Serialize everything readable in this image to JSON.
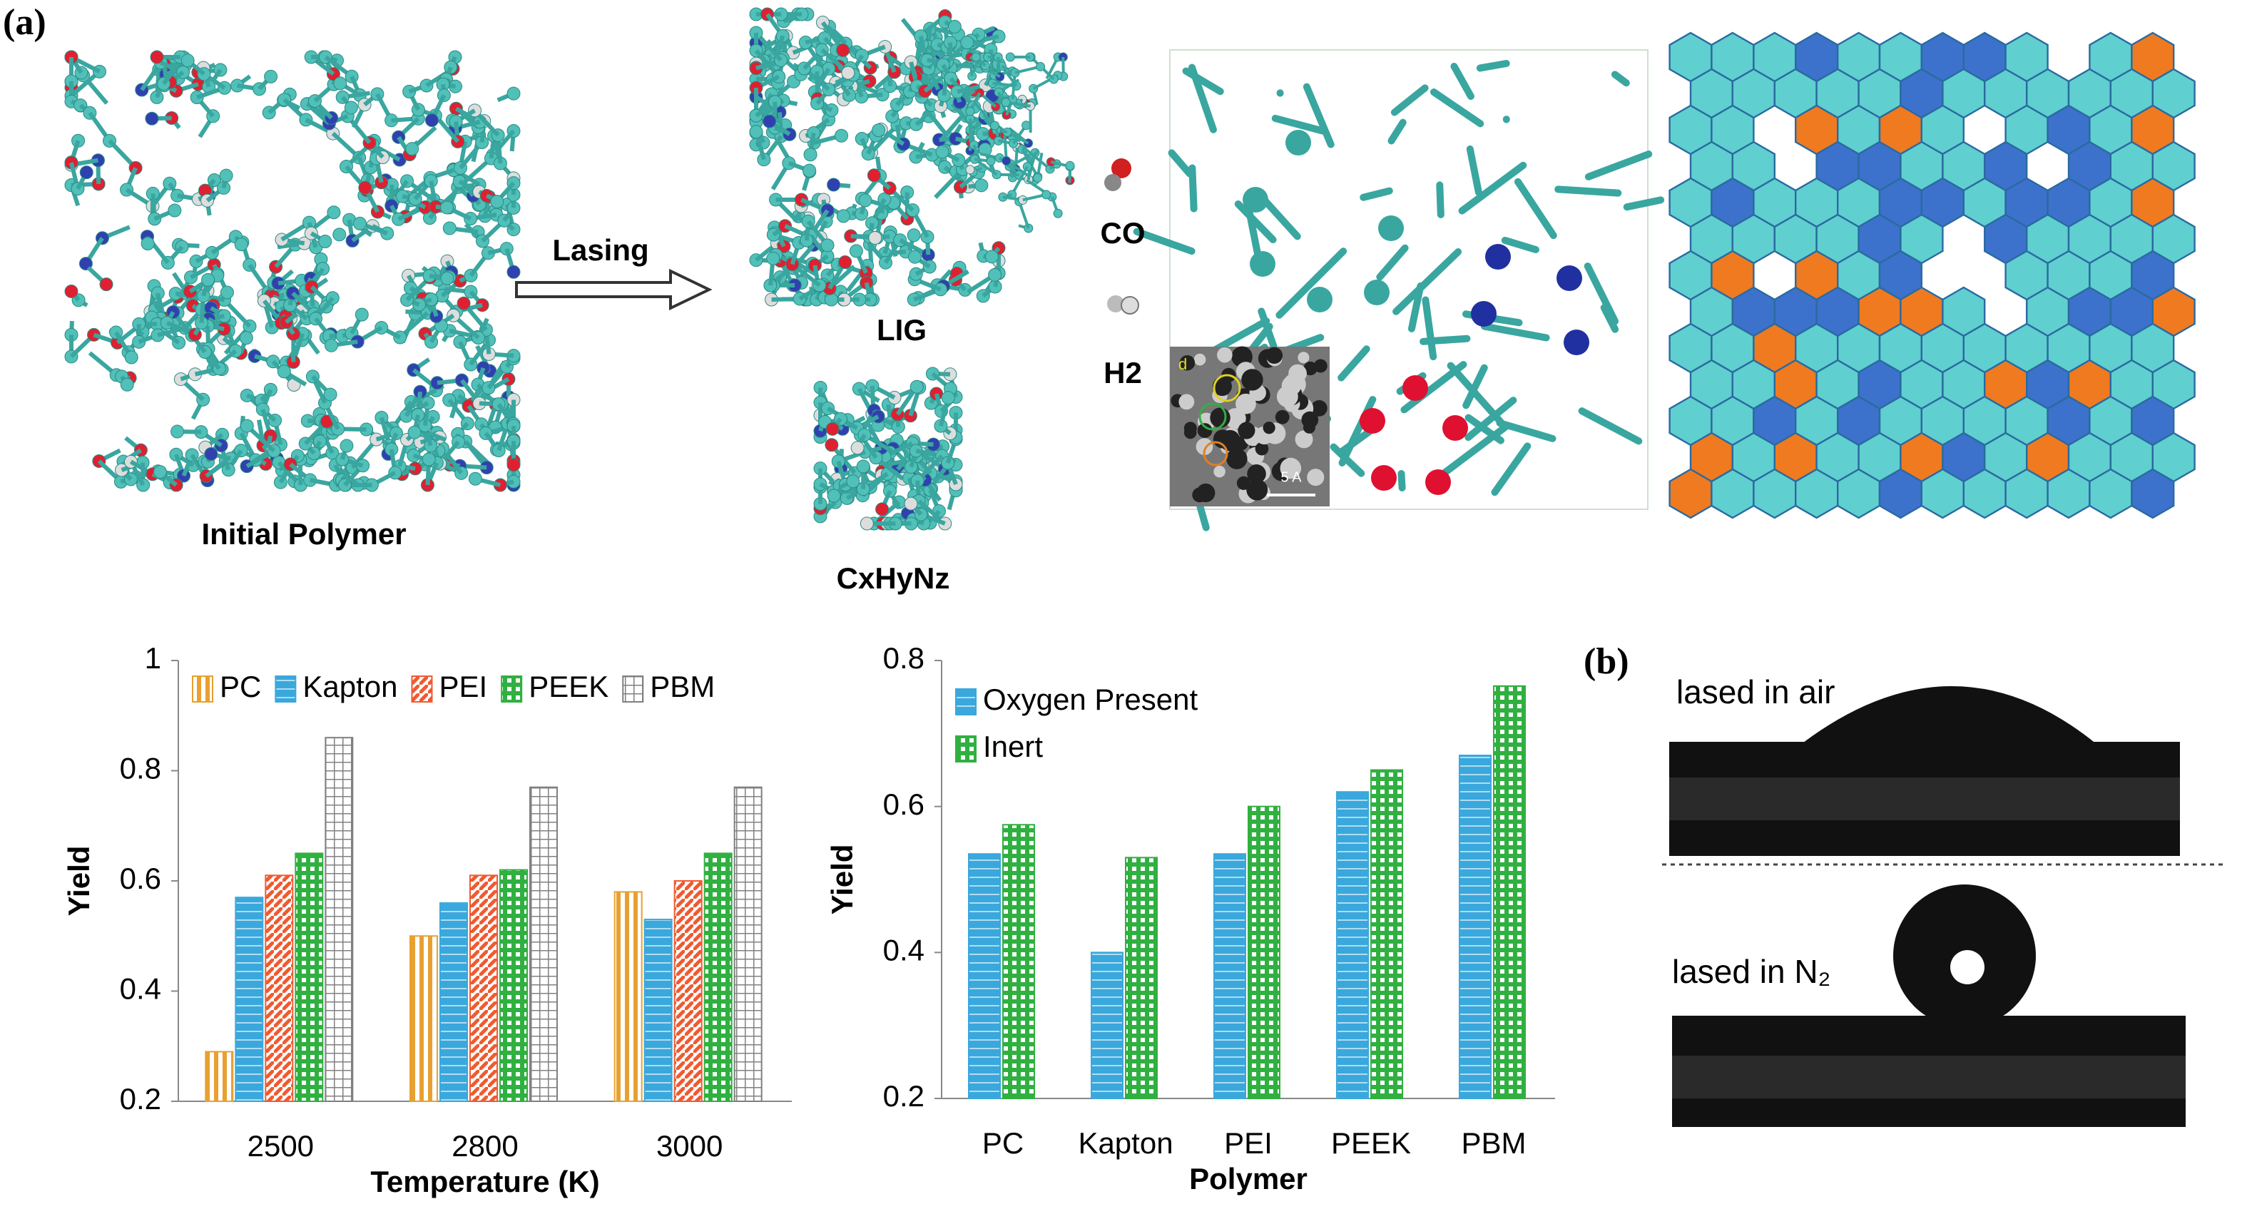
{
  "labels": {
    "panel_a": "(a)",
    "initial_polymer": "Initial Polymer",
    "lasing": "Lasing",
    "lig": "LIG",
    "cxhynz": "CxHyNz",
    "co": "CO",
    "h2": "H2",
    "inset_letter": "d",
    "scale_bar": "5 A",
    "panel_b": "(b)",
    "air": "lased in air",
    "n2": "lased in N₂"
  },
  "chart_data": [
    {
      "type": "bar",
      "x_label": "Temperature (K)",
      "y_label": "Yield",
      "categories": [
        "2500",
        "2800",
        "3000"
      ],
      "series": [
        {
          "name": "PC",
          "color": "#e8a030",
          "values": [
            0.29,
            0.5,
            0.58
          ]
        },
        {
          "name": "Kapton",
          "color": "#3aa8dc",
          "values": [
            0.57,
            0.56,
            0.53
          ]
        },
        {
          "name": "PEI",
          "color": "#f05a30",
          "values": [
            0.61,
            0.61,
            0.6
          ]
        },
        {
          "name": "PEEK",
          "color": "#30b040",
          "values": [
            0.65,
            0.62,
            0.65
          ]
        },
        {
          "name": "PBM",
          "color": "#808080",
          "values": [
            0.86,
            0.77,
            0.77
          ]
        }
      ],
      "ylim": [
        0.2,
        1
      ],
      "yticks": [
        0.2,
        0.4,
        0.6,
        0.8,
        1
      ],
      "grid": false,
      "legend": "upper left"
    },
    {
      "type": "bar",
      "x_label": "Polymer",
      "y_label": "Yield",
      "categories": [
        "PC",
        "Kapton",
        "PEI",
        "PEEK",
        "PBM"
      ],
      "series": [
        {
          "name": "Oxygen Present",
          "color": "#3aa8dc",
          "values": [
            0.535,
            0.4,
            0.535,
            0.62,
            0.67
          ]
        },
        {
          "name": "Inert",
          "color": "#30b040",
          "values": [
            0.575,
            0.53,
            0.6,
            0.65,
            0.765
          ]
        }
      ],
      "ylim": [
        0.2,
        0.8
      ],
      "yticks": [
        0.2,
        0.4,
        0.6,
        0.8
      ],
      "grid": false,
      "legend": "upper left"
    }
  ]
}
